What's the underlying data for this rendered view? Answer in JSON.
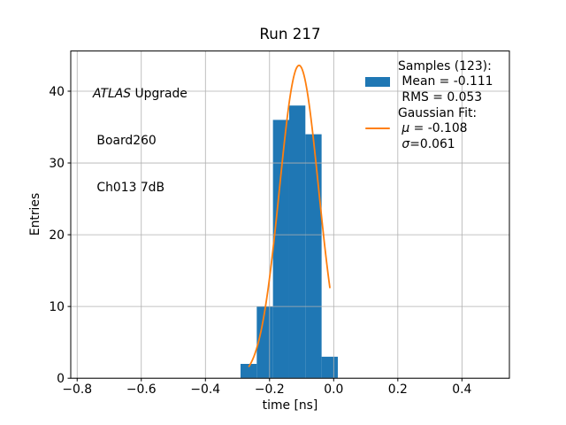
{
  "figure": {
    "background": "#ffffff"
  },
  "chart_data": {
    "type": "histogram",
    "title": "Run 217",
    "xlabel": "time [ns]",
    "ylabel": "Entries",
    "xlim": [
      -0.82,
      0.548
    ],
    "ylim": [
      0,
      45.6
    ],
    "grid": true,
    "grid_color": "#b0b0b0",
    "spine_color": "#000000",
    "xticks": [
      {
        "v": -0.8,
        "label": "−0.8"
      },
      {
        "v": -0.6,
        "label": "−0.6"
      },
      {
        "v": -0.4,
        "label": "−0.4"
      },
      {
        "v": -0.2,
        "label": "−0.2"
      },
      {
        "v": 0.0,
        "label": "0.0"
      },
      {
        "v": 0.2,
        "label": "0.2"
      },
      {
        "v": 0.4,
        "label": "0.4"
      }
    ],
    "yticks": [
      {
        "v": 0,
        "label": "0"
      },
      {
        "v": 10,
        "label": "10"
      },
      {
        "v": 20,
        "label": "20"
      },
      {
        "v": 30,
        "label": "30"
      },
      {
        "v": 40,
        "label": "40"
      }
    ],
    "histogram": {
      "color": "#1f77b4",
      "total": 123,
      "bin_edges": [
        -0.2905,
        -0.2399,
        -0.1894,
        -0.1388,
        -0.0883,
        -0.0377,
        0.0129
      ],
      "counts": [
        2,
        10,
        36,
        38,
        34,
        3
      ]
    },
    "gaussian_fit": {
      "color": "#ff7f0e",
      "mu": -0.108,
      "sigma": 0.061,
      "amplitude": 43.6,
      "x_range": [
        -0.264,
        -0.012
      ]
    }
  },
  "annotation": {
    "line1_italic": "ATLAS",
    "line1_rest": " Upgrade",
    "line2": " Board260",
    "line3": " Ch013 7dB"
  },
  "legend": {
    "samples_header": "Samples (123):",
    "mean_line": " Mean = -0.111",
    "rms_line": " RMS = 0.053",
    "fit_header": "Gaussian Fit:",
    "mu_prefix": " ",
    "mu_symbol": "μ",
    "mu_rest": " = -0.108",
    "sigma_prefix": " ",
    "sigma_symbol": "σ",
    "sigma_rest": "=0.061",
    "patch_color": "#1f77b4",
    "line_color": "#ff7f0e"
  }
}
